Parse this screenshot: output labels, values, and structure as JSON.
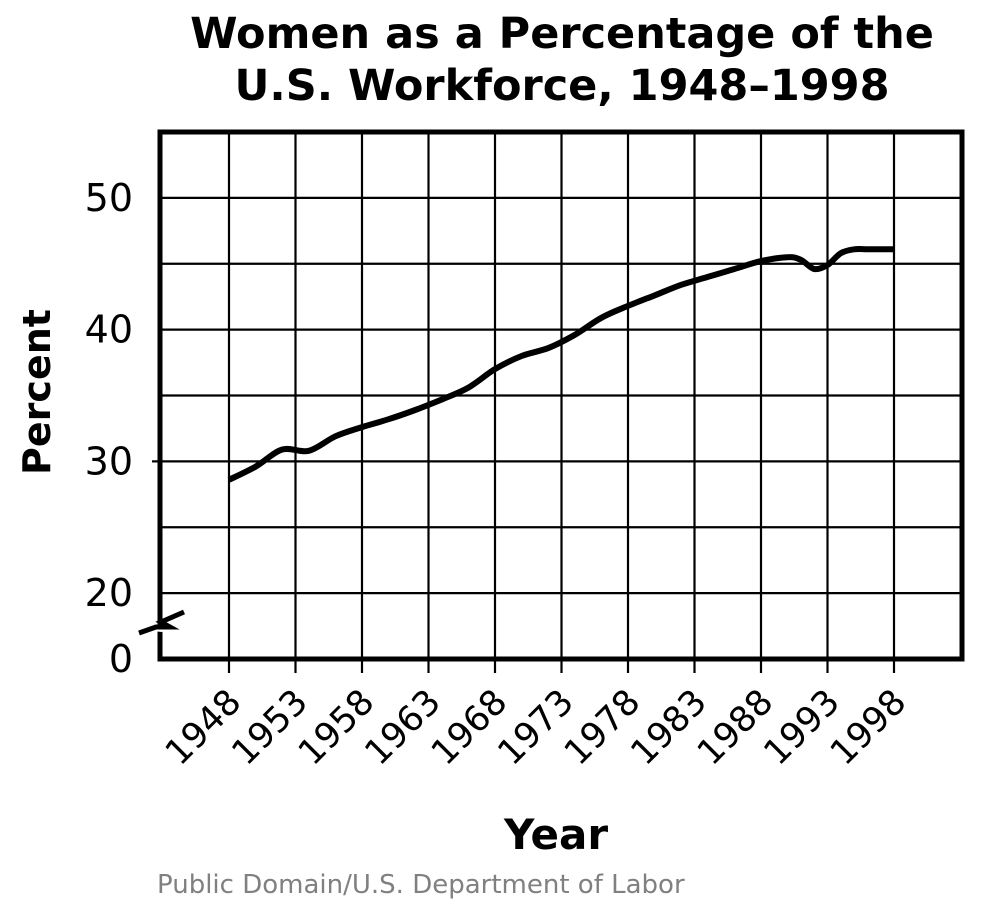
{
  "chart_data": {
    "type": "line",
    "title_lines": [
      "Women as a Percentage of the",
      "U.S. Workforce, 1948–1998"
    ],
    "xlabel": "Year",
    "ylabel": "Percent",
    "x_ticks": [
      "1948",
      "1953",
      "1958",
      "1963",
      "1968",
      "1973",
      "1978",
      "1983",
      "1988",
      "1993",
      "1998"
    ],
    "y_ticks": [
      "0",
      "20",
      "30",
      "40",
      "50"
    ],
    "xlim": [
      1943,
      2003
    ],
    "ylim": [
      15,
      55
    ],
    "y_axis_break": true,
    "grid": true,
    "legend": "none",
    "series": [
      {
        "color": "#000000",
        "x": [
          1948,
          1950,
          1952,
          1954,
          1956,
          1958,
          1960,
          1962,
          1964,
          1966,
          1968,
          1970,
          1972,
          1974,
          1976,
          1978,
          1980,
          1982,
          1984,
          1986,
          1988,
          1990,
          1991,
          1992,
          1993,
          1994,
          1995,
          1996,
          1997,
          1998
        ],
        "y": [
          28.6,
          29.6,
          30.9,
          30.8,
          31.9,
          32.6,
          33.2,
          33.9,
          34.7,
          35.6,
          37.0,
          38.0,
          38.6,
          39.6,
          40.9,
          41.8,
          42.6,
          43.4,
          44.0,
          44.6,
          45.2,
          45.5,
          45.3,
          44.6,
          44.9,
          45.8,
          46.1,
          46.1,
          46.1,
          46.1
        ]
      }
    ]
  },
  "source_note": "Public Domain/U.S. Department of Labor"
}
